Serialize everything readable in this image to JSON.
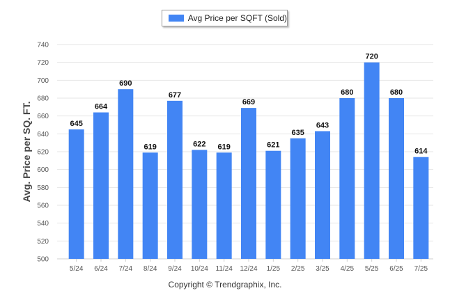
{
  "legend": {
    "label": "Avg Price per SQFT (Sold)",
    "color": "#4285f4"
  },
  "copyright": "Copyright © Trendgraphix, Inc.",
  "chart_data": {
    "type": "bar",
    "title": "",
    "xlabel": "",
    "ylabel": "Avg. Price per SQ. FT.",
    "ylim": [
      500,
      740
    ],
    "yticks": [
      500,
      520,
      540,
      560,
      580,
      600,
      620,
      640,
      660,
      680,
      700,
      720,
      740
    ],
    "grid": true,
    "legend_position": "top-center",
    "categories": [
      "5/24",
      "6/24",
      "7/24",
      "8/24",
      "9/24",
      "10/24",
      "11/24",
      "12/24",
      "1/25",
      "2/25",
      "3/25",
      "4/25",
      "5/25",
      "6/25",
      "7/25"
    ],
    "series": [
      {
        "name": "Avg Price per SQFT (Sold)",
        "values": [
          645,
          664,
          690,
          619,
          677,
          622,
          619,
          669,
          621,
          635,
          643,
          680,
          720,
          680,
          614
        ]
      }
    ],
    "bar_color": "#4285f4"
  }
}
